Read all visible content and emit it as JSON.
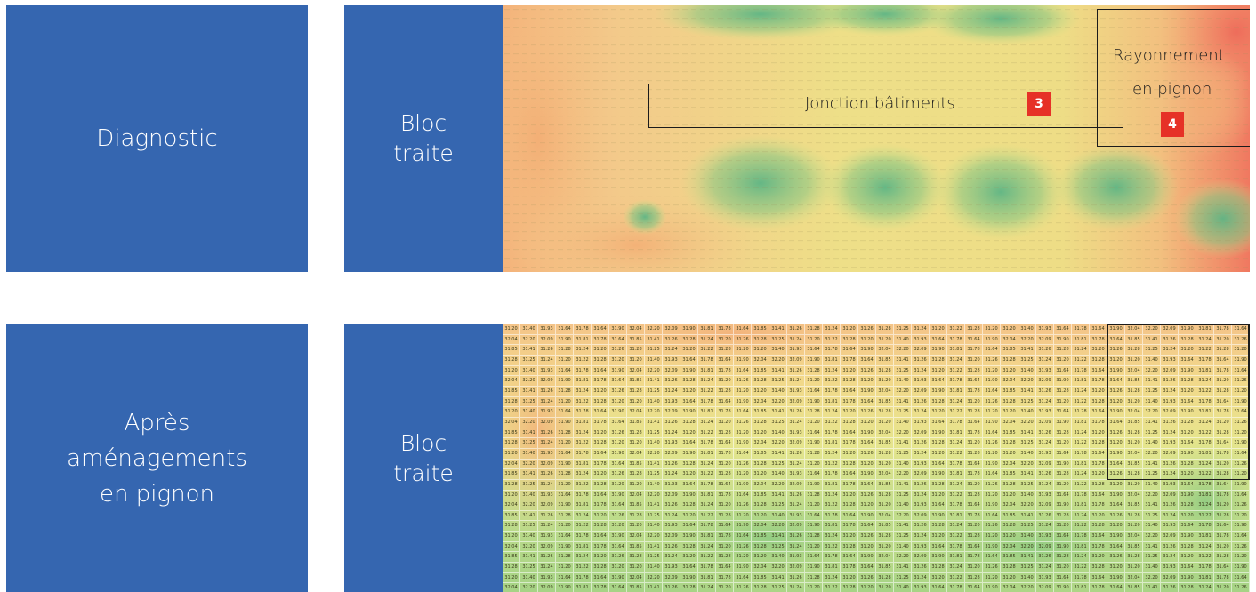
{
  "rows": [
    {
      "row_label": "Diagnostic",
      "bloc_label": "Bloc\ntraite",
      "annotations": {
        "junction": {
          "label": "Jonction bâtiments",
          "badge": "3"
        },
        "pignon": {
          "label_line1": "Rayonnement",
          "label_line2": "en pignon",
          "badge": "4"
        }
      }
    },
    {
      "row_label": "Après\naménagements\nen pignon",
      "bloc_label": "Bloc\ntraite"
    }
  ],
  "colors": {
    "tile_blue": "#3566b0",
    "badge_red": "#e63127",
    "heat_hot": "#f07a5a",
    "heat_warm": "#f3c98a",
    "heat_mid": "#f0e58a",
    "heat_cool": "#64b883"
  },
  "grid_values_sample": [
    "31.20",
    "31.40",
    "31.93",
    "31.64",
    "31.78",
    "31.64",
    "31.90",
    "32.04",
    "32.20",
    "32.09",
    "31.90",
    "31.81",
    "31.78",
    "31.64",
    "31.85",
    "31.41",
    "31.26",
    "31.28",
    "31.24",
    "31.20",
    "31.26",
    "31.28",
    "31.25",
    "31.24",
    "31.20",
    "31.22",
    "31.28",
    "31.20"
  ]
}
